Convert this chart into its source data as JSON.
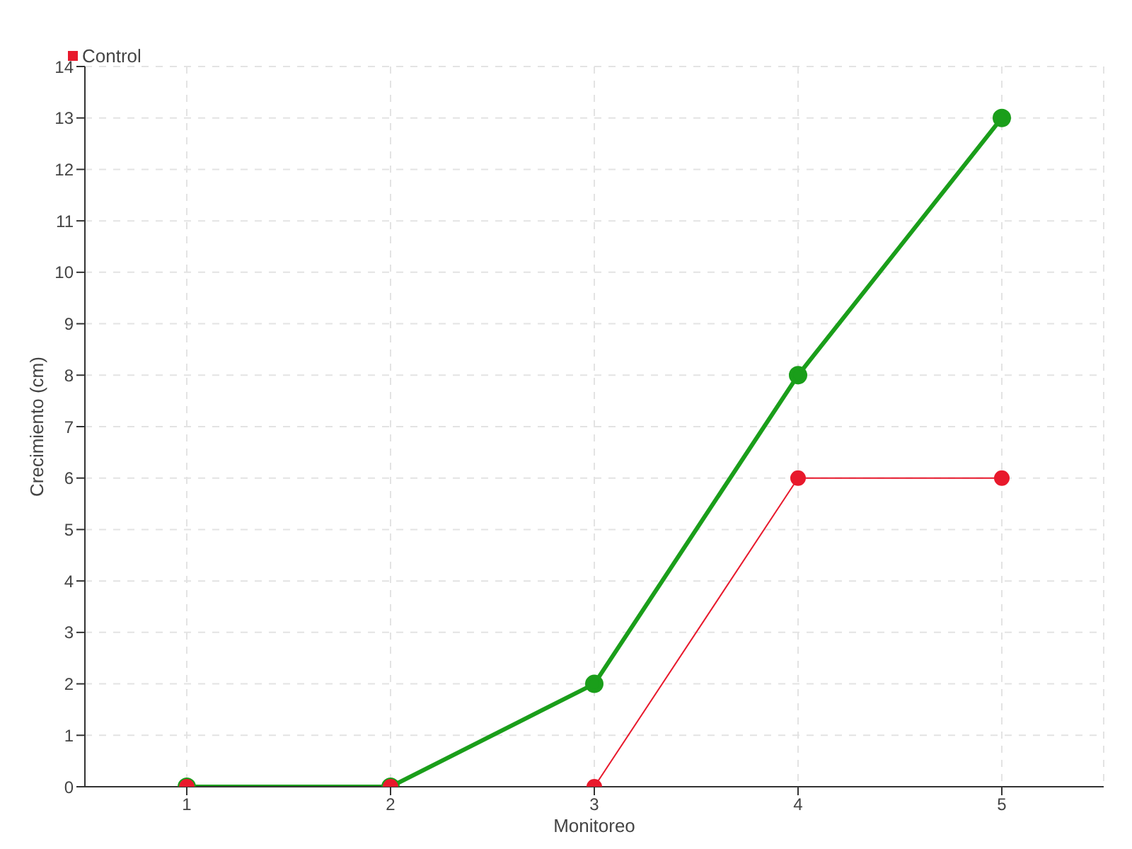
{
  "chart_data": {
    "type": "line",
    "xlabel": "Monitoreo",
    "ylabel": "Crecimiento (cm)",
    "x": [
      1,
      2,
      3,
      4,
      5
    ],
    "series": [
      {
        "color": "#1a9e1a",
        "values": [
          0,
          0,
          2,
          8,
          13
        ]
      },
      {
        "name": "Control",
        "color": "#e8192c",
        "values": [
          0,
          0,
          0,
          6,
          6
        ]
      }
    ],
    "xlim": [
      0.5,
      5.5
    ],
    "xticks": [
      1,
      2,
      3,
      4,
      5
    ],
    "ylim": [
      0,
      14
    ],
    "yticks": [
      0,
      1,
      2,
      3,
      4,
      5,
      6,
      7,
      8,
      9,
      10,
      11,
      12,
      13,
      14
    ],
    "grid": true,
    "legend": "top left",
    "marker": "circle",
    "line_style": "solid"
  }
}
